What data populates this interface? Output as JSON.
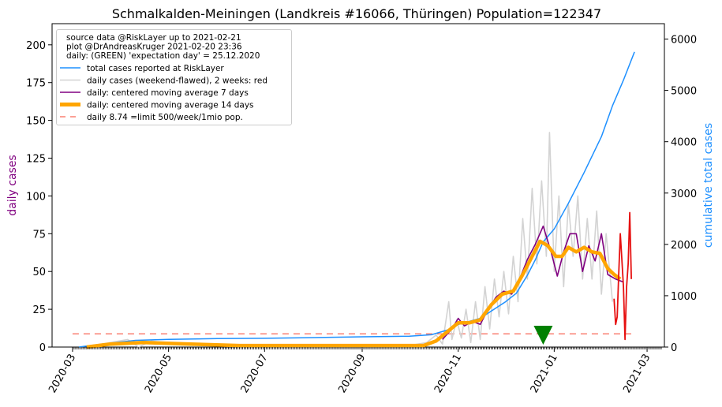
{
  "chart_data": {
    "type": "line",
    "title": "Schmalkalden-Meiningen (Landkreis #16066, Thüringen) Population=122347",
    "ylabel_left": "daily cases",
    "ylabel_right": "cumulative total cases",
    "ylim_left": [
      0,
      214
    ],
    "ylim_right": [
      0,
      6300
    ],
    "xlim": [
      "2020-02-17",
      "2021-03-12"
    ],
    "left_ticks": [
      0,
      25,
      50,
      75,
      100,
      125,
      150,
      175,
      200
    ],
    "right_ticks": [
      0,
      1000,
      2000,
      3000,
      4000,
      5000,
      6000
    ],
    "x_ticks": [
      "2020-03",
      "2020-05",
      "2020-07",
      "2020-09",
      "2020-11",
      "2021-01",
      "2021-03"
    ],
    "info_lines": [
      "source data @RiskLayer up to 2021-02-21",
      "plot @DrAndreasKruger 2021-02-20 23:36",
      "daily: (GREEN) 'expectation day' = 25.12.2020"
    ],
    "legend": [
      {
        "label": "total cases reported at RiskLayer",
        "color": "#1e90ff",
        "style": "solid",
        "width": 1.5
      },
      {
        "label": "daily cases (weekend-flawed), 2 weeks: red",
        "color": "#d3d3d3",
        "style": "solid",
        "width": 1.5
      },
      {
        "label": "daily: centered moving average 7 days",
        "color": "#800080",
        "style": "solid",
        "width": 1.5
      },
      {
        "label": "daily: centered moving average 14 days",
        "color": "#ffa500",
        "style": "solid",
        "width": 5
      },
      {
        "label": "daily 8.74 =limit 500/week/1mio pop.",
        "color": "#fa8072",
        "style": "dashed",
        "width": 1.5
      }
    ],
    "limit_value": 8.74,
    "limit_range": [
      "2020-03-01",
      "2021-02-21"
    ],
    "expectation_day": "2020-12-25",
    "series": [
      {
        "name": "total cases reported at RiskLayer",
        "axis": "right",
        "color": "#1e90ff",
        "points": [
          [
            "2020-03-05",
            0
          ],
          [
            "2020-03-20",
            60
          ],
          [
            "2020-04-10",
            130
          ],
          [
            "2020-05-01",
            150
          ],
          [
            "2020-06-01",
            165
          ],
          [
            "2020-07-01",
            170
          ],
          [
            "2020-08-01",
            185
          ],
          [
            "2020-09-01",
            200
          ],
          [
            "2020-10-01",
            210
          ],
          [
            "2020-10-15",
            240
          ],
          [
            "2020-10-25",
            330
          ],
          [
            "2020-11-01",
            440
          ],
          [
            "2020-11-15",
            560
          ],
          [
            "2020-11-22",
            700
          ],
          [
            "2020-12-01",
            880
          ],
          [
            "2020-12-08",
            1050
          ],
          [
            "2020-12-15",
            1400
          ],
          [
            "2020-12-20",
            1700
          ],
          [
            "2020-12-25",
            2050
          ],
          [
            "2021-01-01",
            2300
          ],
          [
            "2021-01-10",
            2800
          ],
          [
            "2021-01-20",
            3400
          ],
          [
            "2021-01-31",
            4100
          ],
          [
            "2021-02-07",
            4700
          ],
          [
            "2021-02-14",
            5200
          ],
          [
            "2021-02-21",
            5750
          ]
        ]
      },
      {
        "name": "daily cases (weekend-flawed), 2 weeks: red",
        "axis": "left",
        "color": "#d3d3d3",
        "points": [
          [
            "2020-03-10",
            0
          ],
          [
            "2020-03-25",
            3
          ],
          [
            "2020-04-05",
            5
          ],
          [
            "2020-04-12",
            0
          ],
          [
            "2020-04-20",
            4
          ],
          [
            "2020-05-05",
            2
          ],
          [
            "2020-06-01",
            1
          ],
          [
            "2020-07-01",
            1
          ],
          [
            "2020-08-01",
            1
          ],
          [
            "2020-09-01",
            1
          ],
          [
            "2020-10-01",
            1
          ],
          [
            "2020-10-12",
            3
          ],
          [
            "2020-10-18",
            8
          ],
          [
            "2020-10-22",
            2
          ],
          [
            "2020-10-26",
            30
          ],
          [
            "2020-10-28",
            5
          ],
          [
            "2020-10-31",
            18
          ],
          [
            "2020-11-03",
            6
          ],
          [
            "2020-11-06",
            25
          ],
          [
            "2020-11-09",
            3
          ],
          [
            "2020-11-12",
            30
          ],
          [
            "2020-11-15",
            5
          ],
          [
            "2020-11-18",
            40
          ],
          [
            "2020-11-21",
            12
          ],
          [
            "2020-11-24",
            45
          ],
          [
            "2020-11-27",
            20
          ],
          [
            "2020-11-30",
            50
          ],
          [
            "2020-12-03",
            22
          ],
          [
            "2020-12-06",
            60
          ],
          [
            "2020-12-09",
            30
          ],
          [
            "2020-12-12",
            85
          ],
          [
            "2020-12-15",
            45
          ],
          [
            "2020-12-18",
            105
          ],
          [
            "2020-12-21",
            55
          ],
          [
            "2020-12-24",
            110
          ],
          [
            "2020-12-27",
            60
          ],
          [
            "2020-12-29",
            142
          ],
          [
            "2021-01-01",
            50
          ],
          [
            "2021-01-04",
            100
          ],
          [
            "2021-01-07",
            40
          ],
          [
            "2021-01-10",
            95
          ],
          [
            "2021-01-13",
            60
          ],
          [
            "2021-01-16",
            100
          ],
          [
            "2021-01-19",
            45
          ],
          [
            "2021-01-22",
            85
          ],
          [
            "2021-01-25",
            45
          ],
          [
            "2021-01-28",
            90
          ],
          [
            "2021-01-31",
            35
          ],
          [
            "2021-02-03",
            75
          ],
          [
            "2021-02-07",
            30
          ]
        ]
      },
      {
        "name": "daily: centered moving average 7 days",
        "axis": "left",
        "color": "#800080",
        "points": [
          [
            "2020-10-22",
            5
          ],
          [
            "2020-10-28",
            12
          ],
          [
            "2020-11-01",
            19
          ],
          [
            "2020-11-05",
            14
          ],
          [
            "2020-11-10",
            17
          ],
          [
            "2020-11-15",
            15
          ],
          [
            "2020-11-20",
            25
          ],
          [
            "2020-11-25",
            33
          ],
          [
            "2020-11-30",
            37
          ],
          [
            "2020-12-05",
            35
          ],
          [
            "2020-12-10",
            45
          ],
          [
            "2020-12-15",
            58
          ],
          [
            "2020-12-20",
            68
          ],
          [
            "2020-12-25",
            80
          ],
          [
            "2020-12-30",
            63
          ],
          [
            "2021-01-03",
            47
          ],
          [
            "2021-01-07",
            63
          ],
          [
            "2021-01-11",
            75
          ],
          [
            "2021-01-15",
            75
          ],
          [
            "2021-01-19",
            50
          ],
          [
            "2021-01-23",
            67
          ],
          [
            "2021-01-27",
            57
          ],
          [
            "2021-01-31",
            75
          ],
          [
            "2021-02-04",
            48
          ],
          [
            "2021-02-09",
            45
          ],
          [
            "2021-02-14",
            43
          ]
        ]
      },
      {
        "name": "daily: centered moving average 14 days",
        "axis": "left",
        "color": "#ffa500",
        "points": [
          [
            "2020-03-10",
            0
          ],
          [
            "2020-03-25",
            2
          ],
          [
            "2020-04-15",
            3
          ],
          [
            "2020-05-15",
            2
          ],
          [
            "2020-06-15",
            1
          ],
          [
            "2020-07-15",
            1
          ],
          [
            "2020-08-15",
            1
          ],
          [
            "2020-09-15",
            1
          ],
          [
            "2020-10-10",
            1
          ],
          [
            "2020-10-18",
            4
          ],
          [
            "2020-10-25",
            10
          ],
          [
            "2020-11-01",
            16
          ],
          [
            "2020-11-08",
            16
          ],
          [
            "2020-11-15",
            18
          ],
          [
            "2020-11-22",
            28
          ],
          [
            "2020-11-29",
            35
          ],
          [
            "2020-12-06",
            37
          ],
          [
            "2020-12-12",
            48
          ],
          [
            "2020-12-18",
            60
          ],
          [
            "2020-12-23",
            70
          ],
          [
            "2020-12-28",
            67
          ],
          [
            "2021-01-02",
            60
          ],
          [
            "2021-01-06",
            60
          ],
          [
            "2021-01-10",
            66
          ],
          [
            "2021-01-15",
            63
          ],
          [
            "2021-01-20",
            66
          ],
          [
            "2021-01-25",
            63
          ],
          [
            "2021-01-30",
            62
          ],
          [
            "2021-02-04",
            52
          ],
          [
            "2021-02-08",
            48
          ],
          [
            "2021-02-12",
            45
          ]
        ]
      },
      {
        "name": "daily cases (last 2 weeks)",
        "axis": "left",
        "color": "#e61010",
        "points": [
          [
            "2021-02-08",
            32
          ],
          [
            "2021-02-09",
            15
          ],
          [
            "2021-02-10",
            20
          ],
          [
            "2021-02-11",
            48
          ],
          [
            "2021-02-12",
            75
          ],
          [
            "2021-02-13",
            58
          ],
          [
            "2021-02-14",
            40
          ],
          [
            "2021-02-15",
            5
          ],
          [
            "2021-02-16",
            40
          ],
          [
            "2021-02-17",
            55
          ],
          [
            "2021-02-18",
            89
          ],
          [
            "2021-02-19",
            45
          ]
        ]
      }
    ]
  }
}
